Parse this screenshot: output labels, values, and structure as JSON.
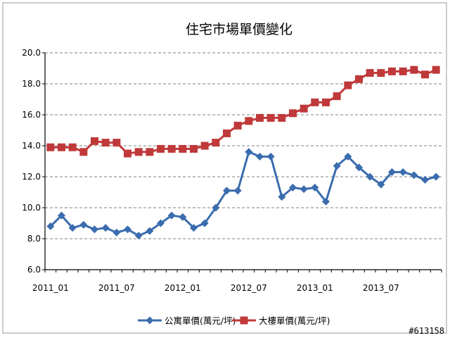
{
  "chart_data": {
    "type": "line",
    "title": "住宅市場單價變化",
    "xlabel": "",
    "ylabel": "",
    "ylim": [
      6.0,
      20.0
    ],
    "ytick_labels": [
      "6.0",
      "8.0",
      "10.0",
      "12.0",
      "14.0",
      "16.0",
      "18.0",
      "20.0"
    ],
    "ytick_values": [
      6,
      8,
      10,
      12,
      14,
      16,
      18,
      20
    ],
    "xtick_labels": [
      "2011_01",
      "2011_07",
      "2012_01",
      "2012_07",
      "2013_01",
      "2013_07"
    ],
    "xtick_indices": [
      0,
      6,
      12,
      18,
      24,
      30
    ],
    "categories": [
      "2011_01",
      "2011_02",
      "2011_03",
      "2011_04",
      "2011_05",
      "2011_06",
      "2011_07",
      "2011_08",
      "2011_09",
      "2011_10",
      "2011_11",
      "2011_12",
      "2012_01",
      "2012_02",
      "2012_03",
      "2012_04",
      "2012_05",
      "2012_06",
      "2012_07",
      "2012_08",
      "2012_09",
      "2012_10",
      "2012_11",
      "2012_12",
      "2013_01",
      "2013_02",
      "2013_03",
      "2013_04",
      "2013_05",
      "2013_06",
      "2013_07",
      "2013_08",
      "2013_09",
      "2013_10",
      "2013_11",
      "2013_12"
    ],
    "grid": true,
    "legend_position": "bottom",
    "series": [
      {
        "name": "公寓單價(萬元/坪)",
        "color": "#3a6cae",
        "marker": "diamond",
        "values": [
          8.8,
          9.5,
          8.7,
          8.9,
          8.6,
          8.7,
          8.4,
          8.6,
          8.2,
          8.5,
          9.0,
          9.5,
          9.4,
          8.7,
          9.0,
          10.0,
          11.1,
          11.1,
          13.6,
          13.3,
          13.3,
          10.7,
          11.3,
          11.2,
          11.3,
          10.4,
          12.7,
          13.3,
          12.6,
          12.0,
          11.5,
          12.3,
          12.3,
          12.1,
          11.8,
          12.0
        ]
      },
      {
        "name": "大樓單價(萬元/坪)",
        "color": "#c0393a",
        "marker": "square",
        "values": [
          13.9,
          13.9,
          13.9,
          13.6,
          14.3,
          14.2,
          14.2,
          13.5,
          13.6,
          13.6,
          13.8,
          13.8,
          13.8,
          13.8,
          14.0,
          14.2,
          14.8,
          15.3,
          15.6,
          15.8,
          15.8,
          15.8,
          16.1,
          16.4,
          16.8,
          16.8,
          17.2,
          17.9,
          18.3,
          18.7,
          18.7,
          18.8,
          18.8,
          18.9,
          18.6,
          18.9
        ]
      }
    ]
  },
  "watermark": "#613158"
}
